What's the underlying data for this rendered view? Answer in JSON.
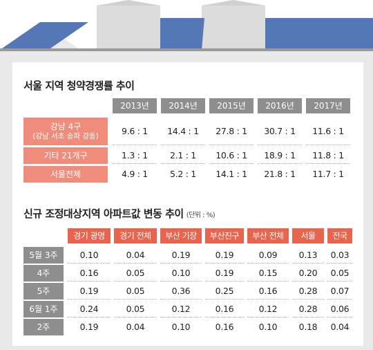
{
  "chart_data": [
    {
      "type": "table",
      "title": "서울 지역 청약경쟁률 추이",
      "columns": [
        "2013년",
        "2014년",
        "2015년",
        "2016년",
        "2017년"
      ],
      "rows": [
        {
          "label": "강남 4구",
          "sublabel": "(강남 서초 송파 강동)",
          "values": [
            "9.6 : 1",
            "14.4 : 1",
            "27.8 : 1",
            "30.7 : 1",
            "11.6 : 1"
          ]
        },
        {
          "label": "기타 21개구",
          "sublabel": "",
          "values": [
            "1.3 : 1",
            "2.1 : 1",
            "10.6 : 1",
            "18.9 : 1",
            "11.8 : 1"
          ]
        },
        {
          "label": "서울전체",
          "sublabel": "",
          "values": [
            "4.9 : 1",
            "5.2 : 1",
            "14.1 : 1",
            "21.8 : 1",
            "11.7 : 1"
          ]
        }
      ]
    },
    {
      "type": "table",
      "title": "신규 조정대상지역 아파트값 변동 추이",
      "unit": "(단위 : %)",
      "columns": [
        "경기 광명",
        "경기 전체",
        "부산 기장",
        "부산진구",
        "부산 전체",
        "서울",
        "전국"
      ],
      "rows": [
        {
          "label": "5월 3주",
          "values": [
            "0.10",
            "0.04",
            "0.19",
            "0.19",
            "0.09",
            "0.13",
            "0.03"
          ]
        },
        {
          "label": "4주",
          "values": [
            "0.16",
            "0.05",
            "0.10",
            "0.19",
            "0.15",
            "0.20",
            "0.05"
          ]
        },
        {
          "label": "5주",
          "values": [
            "0.19",
            "0.05",
            "0.36",
            "0.25",
            "0.16",
            "0.28",
            "0.07"
          ]
        },
        {
          "label": "6월 1주",
          "values": [
            "0.24",
            "0.05",
            "0.12",
            "0.16",
            "0.12",
            "0.28",
            "0.06"
          ]
        },
        {
          "label": "2주",
          "values": [
            "0.19",
            "0.04",
            "0.10",
            "0.16",
            "0.10",
            "0.18",
            "0.04"
          ]
        }
      ]
    }
  ],
  "colors": {
    "roof": "#5577b8",
    "house": "#e9e9e9",
    "gray_header": "#8e8e8e",
    "salmon": "#ef8c7b",
    "red_header": "#e9644d"
  }
}
